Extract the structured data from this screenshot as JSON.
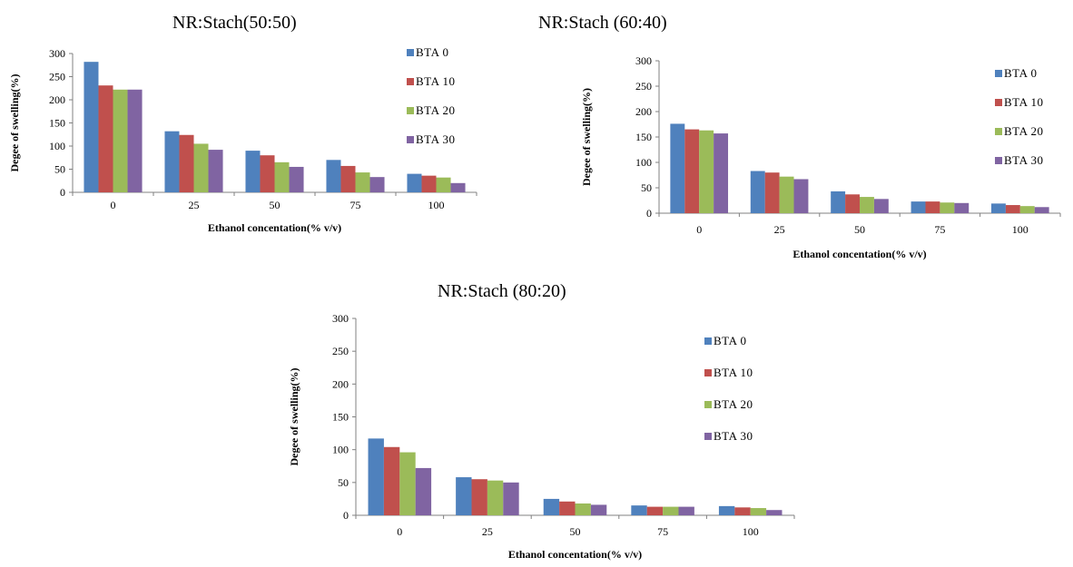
{
  "legend": [
    "BTA 0",
    "BTA 10",
    "BTA 20",
    "BTA 30"
  ],
  "colors": [
    "#4f81bd",
    "#c0504d",
    "#9bbb59",
    "#8064a2"
  ],
  "chart_data": [
    {
      "type": "bar",
      "title": "NR:Stach(50:50)",
      "xlabel": "Ethanol concentation(% v/v)",
      "ylabel": "Degee of swelling(%)",
      "ylim": [
        0,
        300
      ],
      "yticks": [
        "0",
        "50",
        "100",
        "150",
        "200",
        "250",
        "300"
      ],
      "categories": [
        "0",
        "25",
        "50",
        "75",
        "100"
      ],
      "series": [
        {
          "name": "BTA 0",
          "values": [
            282,
            132,
            90,
            70,
            40
          ]
        },
        {
          "name": "BTA 10",
          "values": [
            231,
            124,
            80,
            57,
            36
          ]
        },
        {
          "name": "BTA 20",
          "values": [
            222,
            105,
            65,
            43,
            32
          ]
        },
        {
          "name": "BTA 30",
          "values": [
            222,
            92,
            55,
            33,
            20
          ]
        }
      ]
    },
    {
      "type": "bar",
      "title": "NR:Stach (60:40)",
      "xlabel": "Ethanol concentation(% v/v)",
      "ylabel": "Degee of swelling(%)",
      "ylim": [
        0,
        300
      ],
      "yticks": [
        "0",
        "50",
        "100",
        "150",
        "200",
        "250",
        "300"
      ],
      "categories": [
        "0",
        "25",
        "50",
        "75",
        "100"
      ],
      "series": [
        {
          "name": "BTA 0",
          "values": [
            176,
            83,
            43,
            23,
            19
          ]
        },
        {
          "name": "BTA 10",
          "values": [
            165,
            80,
            37,
            23,
            16
          ]
        },
        {
          "name": "BTA 20",
          "values": [
            163,
            72,
            32,
            21,
            14
          ]
        },
        {
          "name": "BTA 30",
          "values": [
            157,
            67,
            28,
            20,
            12
          ]
        }
      ]
    },
    {
      "type": "bar",
      "title": "NR:Stach (80:20)",
      "xlabel": "Ethanol concentation(% v/v)",
      "ylabel": "Degee of swelling(%)",
      "ylim": [
        0,
        300
      ],
      "yticks": [
        "0",
        "50",
        "100",
        "150",
        "200",
        "250",
        "300"
      ],
      "categories": [
        "0",
        "25",
        "50",
        "75",
        "100"
      ],
      "series": [
        {
          "name": "BTA 0",
          "values": [
            117,
            58,
            25,
            15,
            14
          ]
        },
        {
          "name": "BTA 10",
          "values": [
            104,
            55,
            21,
            13,
            12
          ]
        },
        {
          "name": "BTA 20",
          "values": [
            96,
            53,
            18,
            13,
            11
          ]
        },
        {
          "name": "BTA 30",
          "values": [
            72,
            50,
            16,
            13,
            8
          ]
        }
      ]
    }
  ]
}
